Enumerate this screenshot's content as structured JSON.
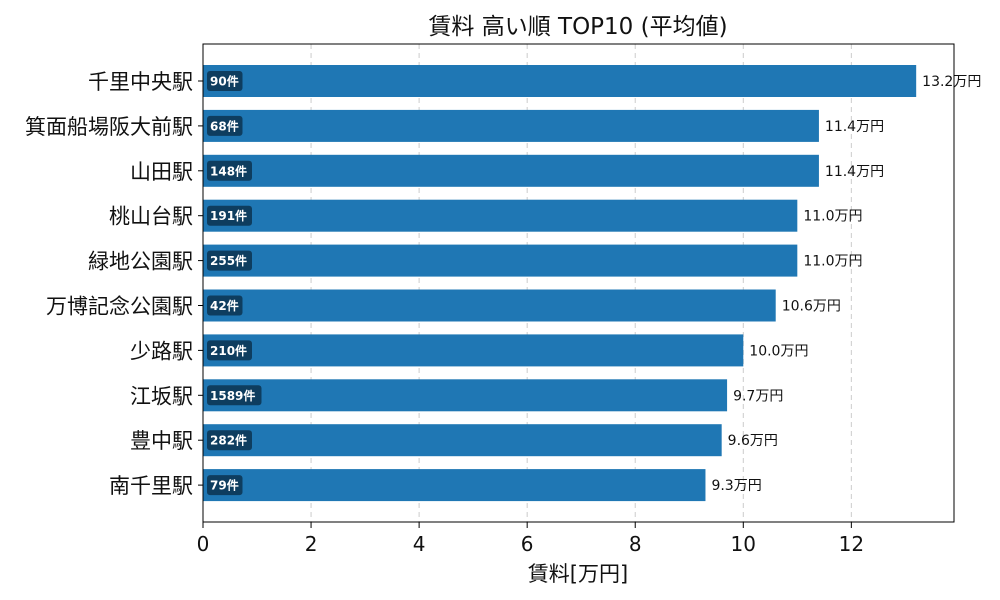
{
  "chart_data": {
    "type": "bar",
    "orientation": "horizontal",
    "title": "賃料 高い順 TOP10 (平均値)",
    "xlabel": "賃料[万円]",
    "ylabel": "",
    "xlim": [
      0,
      13.9
    ],
    "xticks": [
      0,
      2,
      4,
      6,
      8,
      10,
      12
    ],
    "grid": "x-dashed",
    "categories": [
      "千里中央駅",
      "箕面船場阪大前駅",
      "山田駅",
      "桃山台駅",
      "緑地公園駅",
      "万博記念公園駅",
      "少路駅",
      "江坂駅",
      "豊中駅",
      "南千里駅"
    ],
    "values": [
      13.2,
      11.4,
      11.4,
      11.0,
      11.0,
      10.6,
      10.0,
      9.7,
      9.6,
      9.3
    ],
    "value_labels": [
      "13.2万円",
      "11.4万円",
      "11.4万円",
      "11.0万円",
      "11.0万円",
      "10.6万円",
      "10.0万円",
      "9.7万円",
      "9.6万円",
      "9.3万円"
    ],
    "counts": [
      "90件",
      "68件",
      "148件",
      "191件",
      "255件",
      "42件",
      "210件",
      "1589件",
      "282件",
      "79件"
    ],
    "colors": {
      "bar": "#1f77b4",
      "badge": "#0e3d5f",
      "grid": "#cccccc"
    }
  }
}
